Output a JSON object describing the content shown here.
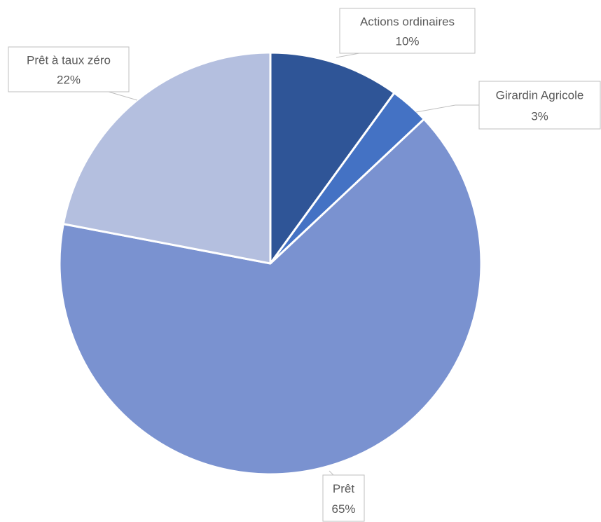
{
  "chart_data": {
    "type": "pie",
    "categories": [
      "Actions ordinaires",
      "Girardin Agricole",
      "Prêt",
      "Prêt à taux zéro"
    ],
    "values": [
      10,
      3,
      65,
      22
    ],
    "value_labels": [
      "10%",
      "3%",
      "65%",
      "22%"
    ],
    "colors": [
      "#2f5597",
      "#4472c4",
      "#7a92d0",
      "#b4bfdf"
    ]
  }
}
